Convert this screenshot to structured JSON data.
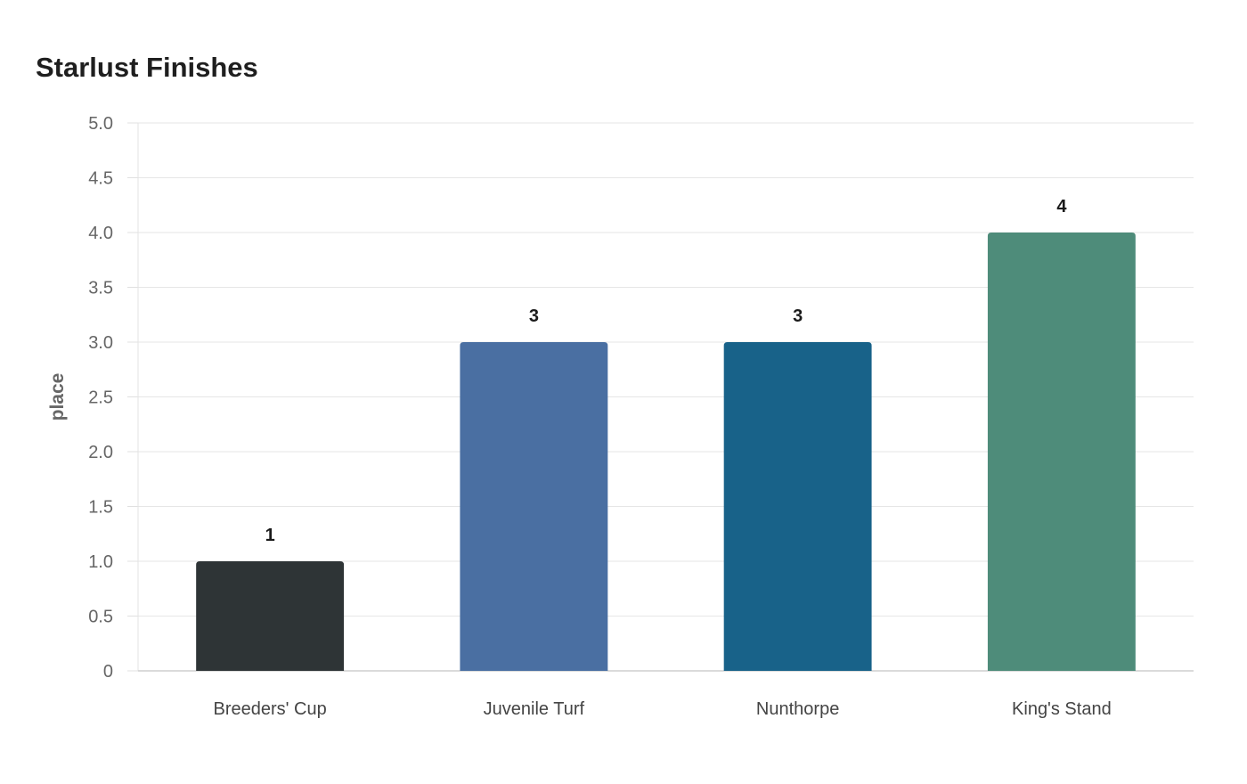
{
  "chart_data": {
    "type": "bar",
    "title": "Starlust Finishes",
    "xlabel": "",
    "ylabel": "place",
    "categories": [
      "Breeders' Cup",
      "Juvenile Turf",
      "Nunthorpe",
      "King's Stand"
    ],
    "values": [
      1,
      3,
      3,
      4
    ],
    "data_labels": [
      "1",
      "3",
      "3",
      "4"
    ],
    "colors": [
      "#2e3436",
      "#4a6fa2",
      "#186289",
      "#4e8c7a"
    ],
    "ylim": [
      0,
      5
    ],
    "yticks": [
      0,
      0.5,
      1,
      1.5,
      2,
      2.5,
      3,
      3.5,
      4,
      4.5,
      5
    ],
    "ytick_labels": [
      "0",
      "0.5",
      "1.0",
      "1.5",
      "2.0",
      "2.5",
      "3.0",
      "3.5",
      "4.0",
      "4.5",
      "5.0"
    ],
    "grid": true,
    "legend": "none"
  }
}
